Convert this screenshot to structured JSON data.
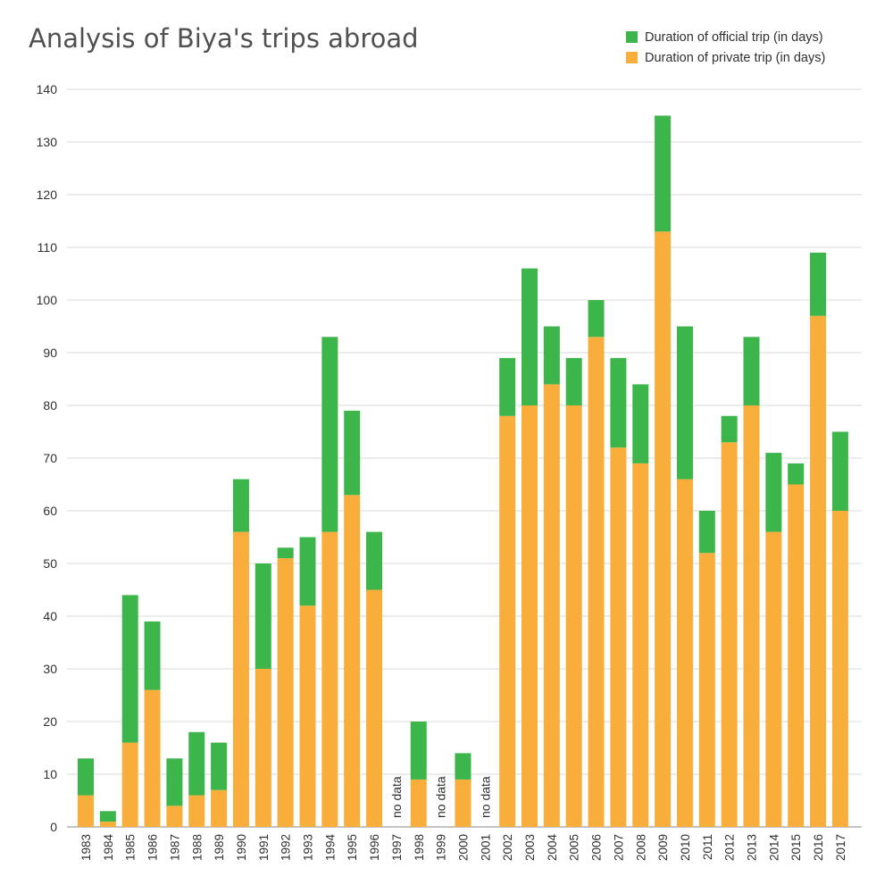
{
  "chart_data": {
    "type": "bar",
    "stacked": true,
    "title": "Analysis of Biya's trips abroad",
    "xlabel": "",
    "ylabel": "",
    "ylim": [
      0,
      140
    ],
    "yticks": [
      0,
      10,
      20,
      30,
      40,
      50,
      60,
      70,
      80,
      90,
      100,
      110,
      120,
      130,
      140
    ],
    "grid": true,
    "legend_position": "top-right",
    "no_data_label": "no data",
    "categories": [
      "1983",
      "1984",
      "1985",
      "1986",
      "1987",
      "1988",
      "1989",
      "1990",
      "1991",
      "1992",
      "1993",
      "1994",
      "1995",
      "1996",
      "1997",
      "1998",
      "1999",
      "2000",
      "2001",
      "2002",
      "2003",
      "2004",
      "2005",
      "2006",
      "2007",
      "2008",
      "2009",
      "2010",
      "2011",
      "2012",
      "2013",
      "2014",
      "2015",
      "2016",
      "2017"
    ],
    "series": [
      {
        "name": "Duration of private trip (in days)",
        "color": "#f9ae3b",
        "values": [
          6,
          1,
          16,
          26,
          4,
          6,
          7,
          56,
          30,
          51,
          42,
          56,
          63,
          45,
          null,
          9,
          null,
          9,
          null,
          78,
          80,
          84,
          80,
          93,
          72,
          69,
          113,
          66,
          52,
          73,
          80,
          56,
          65,
          97,
          60
        ]
      },
      {
        "name": "Duration of official trip (in days)",
        "color": "#3cb54a",
        "values": [
          7,
          2,
          28,
          13,
          9,
          12,
          9,
          10,
          20,
          2,
          13,
          37,
          16,
          11,
          null,
          11,
          null,
          5,
          null,
          11,
          26,
          11,
          9,
          7,
          17,
          15,
          22,
          29,
          8,
          5,
          13,
          15,
          4,
          12,
          15
        ]
      }
    ],
    "legend": [
      {
        "label": "Duration of official trip (in days)",
        "color": "#3cb54a"
      },
      {
        "label": "Duration of private trip (in days)",
        "color": "#f9ae3b"
      }
    ]
  }
}
